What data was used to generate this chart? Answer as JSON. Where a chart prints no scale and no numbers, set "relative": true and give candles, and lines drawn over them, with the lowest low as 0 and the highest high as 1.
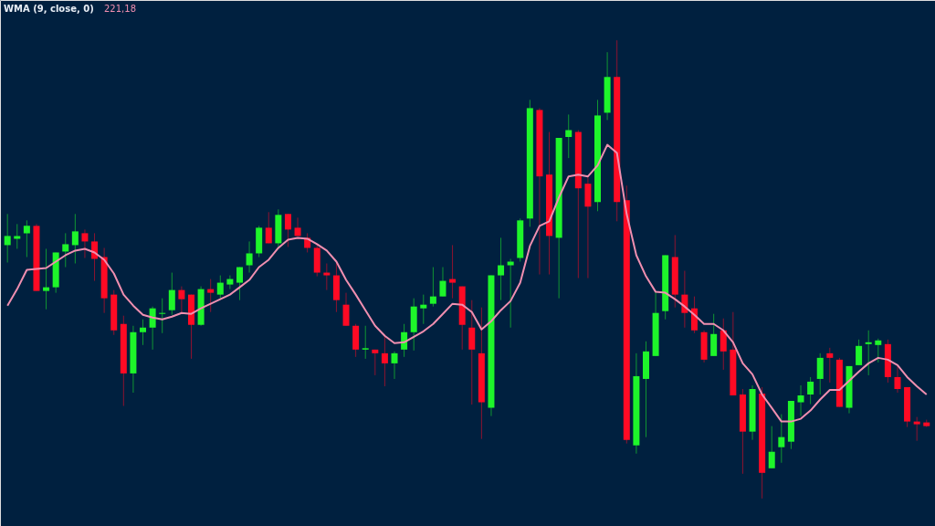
{
  "chart_data": {
    "type": "candlestick",
    "relative": true,
    "title": "WMA (9, close, 0)",
    "annotations": [
      "221,18"
    ],
    "categories": [
      null,
      null,
      null,
      null,
      null,
      null,
      null,
      null,
      null,
      null,
      null,
      null,
      null,
      null,
      null,
      null,
      null,
      null,
      null,
      null,
      null,
      null,
      null,
      null,
      null,
      null,
      null,
      null,
      null,
      null,
      null,
      null,
      null,
      null,
      null,
      null,
      null,
      null,
      null,
      null,
      null,
      null,
      null,
      null,
      null,
      null,
      null,
      null,
      null,
      null,
      null,
      null,
      null,
      null,
      null,
      null,
      null,
      null,
      null,
      null,
      null,
      null,
      null,
      null,
      null,
      null,
      null,
      null,
      null,
      null,
      null,
      null,
      null,
      null,
      null,
      null,
      null,
      null,
      null,
      null,
      null,
      null,
      null,
      null,
      null,
      null,
      null,
      null,
      null,
      null,
      null,
      null,
      null,
      null,
      null,
      null
    ],
    "ohlc": [
      [
        0.553,
        0.621,
        0.515,
        0.573
      ],
      [
        0.567,
        0.599,
        0.545,
        0.573
      ],
      [
        0.579,
        0.607,
        0.527,
        0.595
      ],
      [
        0.595,
        0.599,
        0.453,
        0.453
      ],
      [
        0.453,
        0.545,
        0.413,
        0.461
      ],
      [
        0.461,
        0.537,
        0.449,
        0.537
      ],
      [
        0.539,
        0.579,
        0.505,
        0.555
      ],
      [
        0.553,
        0.621,
        0.513,
        0.583
      ],
      [
        0.579,
        0.587,
        0.525,
        0.561
      ],
      [
        0.561,
        0.579,
        0.475,
        0.523
      ],
      [
        0.527,
        0.547,
        0.405,
        0.437
      ],
      [
        0.445,
        0.455,
        0.357,
        0.367
      ],
      [
        0.381,
        0.399,
        0.202,
        0.273
      ],
      [
        0.273,
        0.377,
        0.231,
        0.363
      ],
      [
        0.363,
        0.391,
        0.335,
        0.373
      ],
      [
        0.373,
        0.419,
        0.325,
        0.415
      ],
      [
        0.403,
        0.437,
        0.361,
        0.405
      ],
      [
        0.411,
        0.493,
        0.401,
        0.455
      ],
      [
        0.455,
        0.463,
        0.405,
        0.435
      ],
      [
        0.445,
        0.445,
        0.305,
        0.379
      ],
      [
        0.379,
        0.463,
        0.377,
        0.457
      ],
      [
        0.457,
        0.479,
        0.407,
        0.449
      ],
      [
        0.445,
        0.487,
        0.437,
        0.471
      ],
      [
        0.467,
        0.487,
        0.457,
        0.479
      ],
      [
        0.471,
        0.505,
        0.433,
        0.505
      ],
      [
        0.509,
        0.561,
        0.493,
        0.535
      ],
      [
        0.535,
        0.595,
        0.527,
        0.591
      ],
      [
        0.591,
        0.625,
        0.557,
        0.557
      ],
      [
        0.557,
        0.631,
        0.547,
        0.619
      ],
      [
        0.621,
        0.621,
        0.549,
        0.587
      ],
      [
        0.591,
        0.613,
        0.573,
        0.573
      ],
      [
        0.569,
        0.579,
        0.537,
        0.547
      ],
      [
        0.547,
        0.555,
        0.485,
        0.493
      ],
      [
        0.493,
        0.513,
        0.455,
        0.487
      ],
      [
        0.487,
        0.515,
        0.407,
        0.433
      ],
      [
        0.423,
        0.449,
        0.377,
        0.377
      ],
      [
        0.377,
        0.381,
        0.309,
        0.325
      ],
      [
        0.325,
        0.377,
        0.305,
        0.328
      ],
      [
        0.325,
        0.325,
        0.269,
        0.317
      ],
      [
        0.317,
        0.357,
        0.245,
        0.295
      ],
      [
        0.295,
        0.321,
        0.261,
        0.317
      ],
      [
        0.325,
        0.381,
        0.309,
        0.363
      ],
      [
        0.363,
        0.437,
        0.323,
        0.419
      ],
      [
        0.415,
        0.445,
        0.381,
        0.423
      ],
      [
        0.425,
        0.505,
        0.419,
        0.441
      ],
      [
        0.441,
        0.505,
        0.441,
        0.475
      ],
      [
        0.479,
        0.553,
        0.437,
        0.471
      ],
      [
        0.463,
        0.463,
        0.325,
        0.379
      ],
      [
        0.373,
        0.433,
        0.205,
        0.325
      ],
      [
        0.317,
        0.417,
        0.13,
        0.21
      ],
      [
        0.198,
        0.487,
        0.18,
        0.487
      ],
      [
        0.487,
        0.569,
        0.433,
        0.509
      ],
      [
        0.509,
        0.523,
        0.373,
        0.517
      ],
      [
        0.525,
        0.611,
        0.517,
        0.607
      ],
      [
        0.611,
        0.87,
        0.593,
        0.852
      ],
      [
        0.848,
        0.852,
        0.489,
        0.703
      ],
      [
        0.707,
        0.8,
        0.489,
        0.573
      ],
      [
        0.569,
        0.787,
        0.437,
        0.787
      ],
      [
        0.789,
        0.838,
        0.743,
        0.804
      ],
      [
        0.8,
        0.804,
        0.481,
        0.677
      ],
      [
        0.687,
        0.705,
        0.481,
        0.637
      ],
      [
        0.647,
        0.87,
        0.627,
        0.836
      ],
      [
        0.842,
        0.974,
        0.826,
        0.92
      ],
      [
        0.92,
        1,
        0.605,
        0.647
      ],
      [
        0.651,
        0.683,
        0.12,
        0.128
      ],
      [
        0.116,
        0.317,
        0.098,
        0.267
      ],
      [
        0.261,
        0.343,
        0.134,
        0.321
      ],
      [
        0.311,
        0.451,
        0.311,
        0.405
      ],
      [
        0.409,
        0.531,
        0.391,
        0.531
      ],
      [
        0.527,
        0.575,
        0.417,
        0.445
      ],
      [
        0.445,
        0.497,
        0.373,
        0.405
      ],
      [
        0.415,
        0.441,
        0.361,
        0.367
      ],
      [
        0.363,
        0.367,
        0.297,
        0.303
      ],
      [
        0.311,
        0.403,
        0.311,
        0.359
      ],
      [
        0.367,
        0.393,
        0.281,
        0.321
      ],
      [
        0.325,
        0.407,
        0.225,
        0.225
      ],
      [
        0.227,
        0.239,
        0.054,
        0.146
      ],
      [
        0.146,
        0.247,
        0.128,
        0.239
      ],
      [
        0.229,
        0.243,
        0,
        0.056
      ],
      [
        0.066,
        0.158,
        0.066,
        0.102
      ],
      [
        0.112,
        0.184,
        0.078,
        0.134
      ],
      [
        0.124,
        0.213,
        0.108,
        0.213
      ],
      [
        0.21,
        0.247,
        0.18,
        0.225
      ],
      [
        0.227,
        0.265,
        0.206,
        0.255
      ],
      [
        0.261,
        0.317,
        0.227,
        0.307
      ],
      [
        0.317,
        0.329,
        0.253,
        0.307
      ],
      [
        0.303,
        0.307,
        0.2,
        0.2
      ],
      [
        0.198,
        0.289,
        0.186,
        0.289
      ],
      [
        0.291,
        0.347,
        0.291,
        0.333
      ],
      [
        0.337,
        0.367,
        0.269,
        0.341
      ],
      [
        0.335,
        0.349,
        0.297,
        0.345
      ],
      [
        0.337,
        0.347,
        0.253,
        0.265
      ],
      [
        0.265,
        0.289,
        0.231,
        0.239
      ],
      [
        0.243,
        0.243,
        0.156,
        0.168
      ],
      [
        0.168,
        0.178,
        0.126,
        0.162
      ],
      [
        0.166,
        0.172,
        0.156,
        0.158
      ]
    ],
    "colors": [
      "#1ef52a",
      "#1ef52a",
      "#1ef52a",
      "#ff0a24",
      "#1ef52a",
      "#1ef52a",
      "#1ef52a",
      "#1ef52a",
      "#ff0a24",
      "#ff0a24",
      "#ff0a24",
      "#ff0a24",
      "#ff0a24",
      "#1ef52a",
      "#1ef52a",
      "#1ef52a",
      "#1ef52a",
      "#1ef52a",
      "#ff0a24",
      "#ff0a24",
      "#1ef52a",
      "#ff0a24",
      "#1ef52a",
      "#1ef52a",
      "#1ef52a",
      "#1ef52a",
      "#1ef52a",
      "#ff0a24",
      "#1ef52a",
      "#ff0a24",
      "#ff0a24",
      "#ff0a24",
      "#ff0a24",
      "#ff0a24",
      "#ff0a24",
      "#ff0a24",
      "#ff0a24",
      "#1ef52a",
      "#ff0a24",
      "#ff0a24",
      "#1ef52a",
      "#1ef52a",
      "#1ef52a",
      "#1ef52a",
      "#1ef52a",
      "#1ef52a",
      "#ff0a24",
      "#ff0a24",
      "#ff0a24",
      "#ff0a24",
      "#1ef52a",
      "#1ef52a",
      "#1ef52a",
      "#1ef52a",
      "#1ef52a",
      "#ff0a24",
      "#ff0a24",
      "#1ef52a",
      "#1ef52a",
      "#ff0a24",
      "#ff0a24",
      "#1ef52a",
      "#1ef52a",
      "#ff0a24",
      "#ff0a24",
      "#1ef52a",
      "#1ef52a",
      "#1ef52a",
      "#1ef52a",
      "#ff0a24",
      "#ff0a24",
      "#ff0a24",
      "#ff0a24",
      "#1ef52a",
      "#ff0a24",
      "#ff0a24",
      "#ff0a24",
      "#1ef52a",
      "#ff0a24",
      "#1ef52a",
      "#1ef52a",
      "#1ef52a",
      "#1ef52a",
      "#1ef52a",
      "#1ef52a",
      "#ff0a24",
      "#ff0a24",
      "#1ef52a",
      "#1ef52a",
      "#1ef52a",
      "#1ef52a",
      "#ff0a24",
      "#ff0a24",
      "#ff0a24",
      "#ff0a24",
      "#ff0a24"
    ],
    "series": [
      {
        "type": "line",
        "color": "#f08fb0",
        "values": [
          0.421,
          0.457,
          0.499,
          0.501,
          0.503,
          0.517,
          0.531,
          0.541,
          0.545,
          0.537,
          0.521,
          0.491,
          0.445,
          0.421,
          0.401,
          0.395,
          0.391,
          0.397,
          0.405,
          0.403,
          0.415,
          0.425,
          0.435,
          0.445,
          0.461,
          0.477,
          0.505,
          0.521,
          0.547,
          0.565,
          0.569,
          0.567,
          0.555,
          0.541,
          0.517,
          0.477,
          0.445,
          0.411,
          0.377,
          0.355,
          0.339,
          0.341,
          0.353,
          0.365,
          0.381,
          0.403,
          0.425,
          0.423,
          0.407,
          0.369,
          0.387,
          0.411,
          0.431,
          0.471,
          0.551,
          0.595,
          0.605,
          0.657,
          0.703,
          0.707,
          0.703,
          0.727,
          0.772,
          0.754,
          0.621,
          0.531,
          0.485,
          0.451,
          0.449,
          0.435,
          0.419,
          0.401,
          0.381,
          0.381,
          0.367,
          0.341,
          0.295,
          0.271,
          0.227,
          0.198,
          0.168,
          0.168,
          0.174,
          0.192,
          0.216,
          0.237,
          0.237,
          0.257,
          0.277,
          0.295,
          0.307,
          0.303,
          0.291,
          0.265,
          0.245,
          0.227
        ]
      }
    ]
  }
}
